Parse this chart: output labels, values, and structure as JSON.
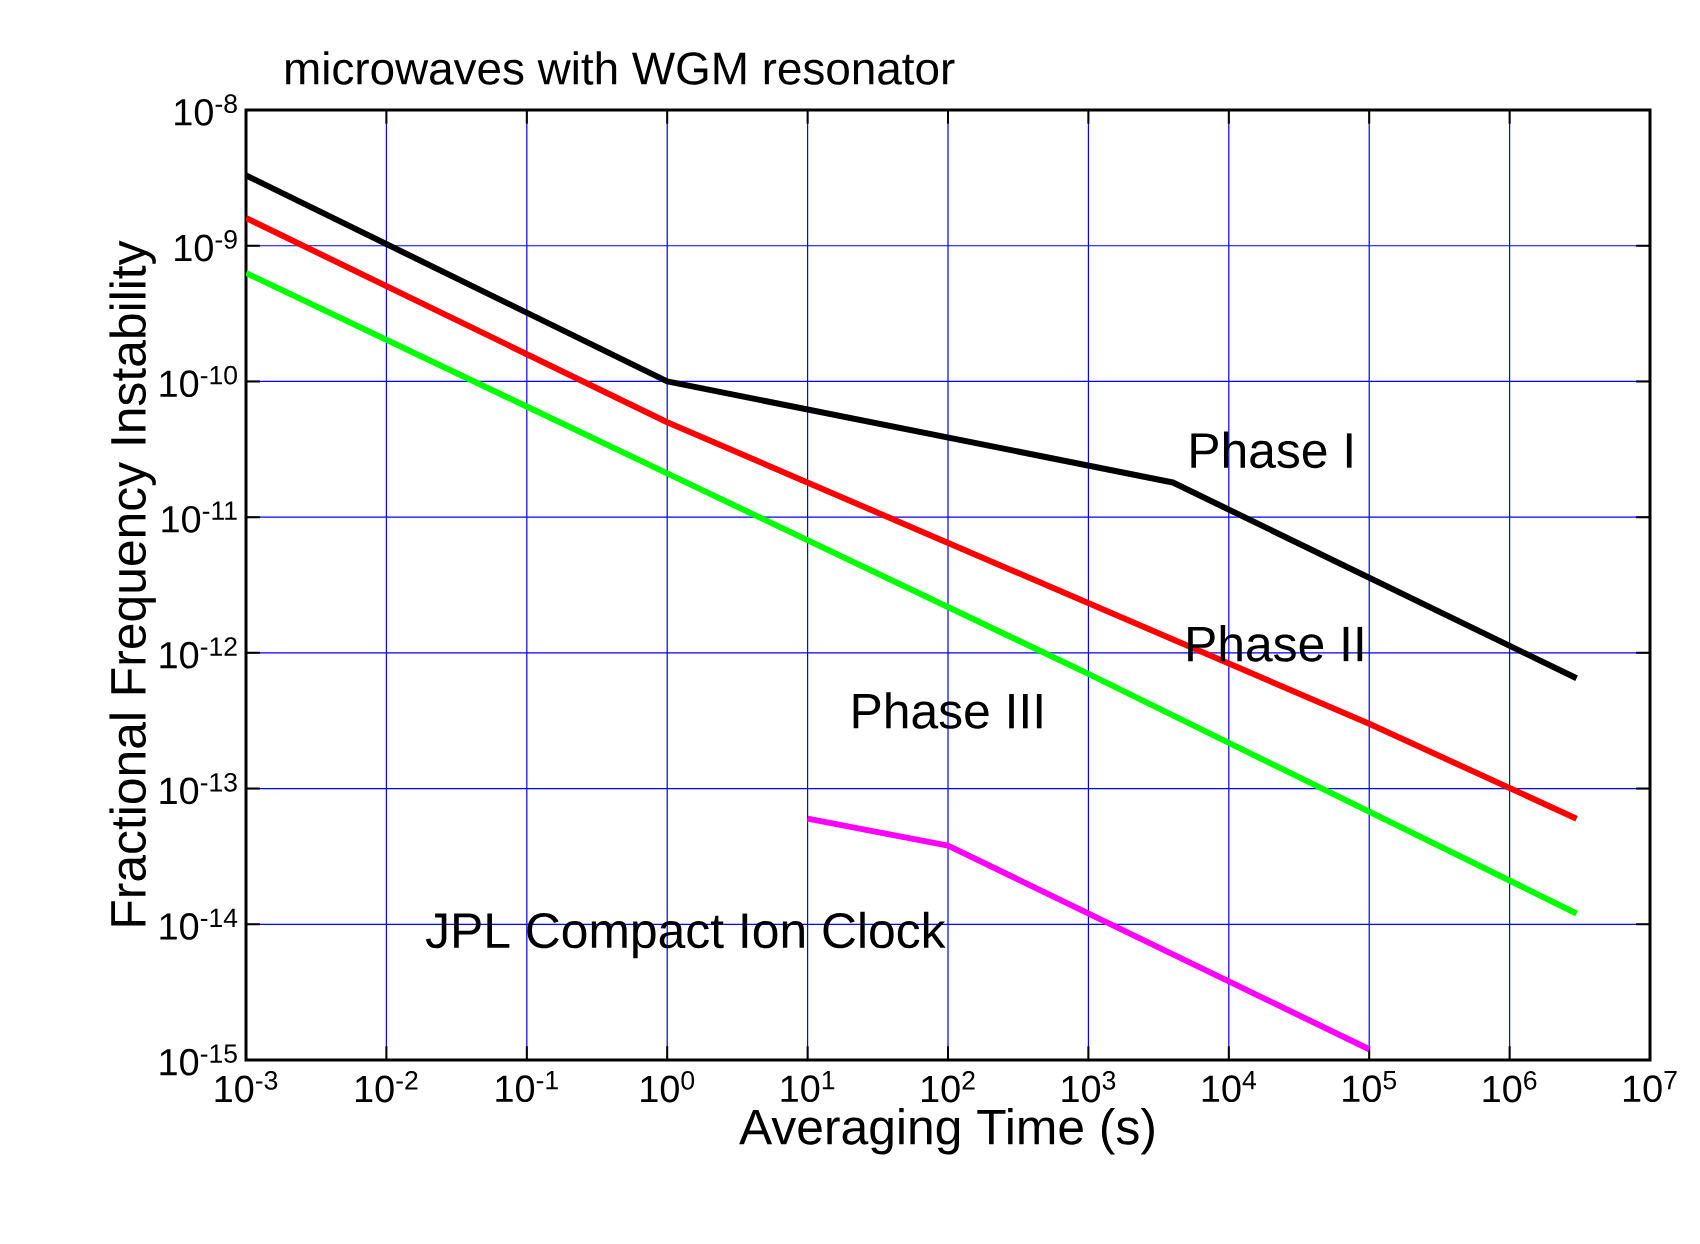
{
  "chart_data": {
    "type": "line",
    "title": "microwaves with WGM resonator",
    "xlabel": "Averaging Time (s)",
    "ylabel": "Fractional Frequency Instability",
    "log": "xy",
    "grid": true,
    "line_style": "solid",
    "marker": "none",
    "xlim": [
      0.001,
      10000000
    ],
    "ylim": [
      1e-15,
      1e-08
    ],
    "xticks": [
      {
        "value": 0.001,
        "label": "10$^{-3}$"
      },
      {
        "value": 0.01,
        "label": "10$^{-2}$"
      },
      {
        "value": 0.1,
        "label": "10$^{-1}$"
      },
      {
        "value": 1,
        "label": "10$^{0}$"
      },
      {
        "value": 10,
        "label": "10$^{1}$"
      },
      {
        "value": 100,
        "label": "10$^{2}$"
      },
      {
        "value": 1000,
        "label": "10$^{3}$"
      },
      {
        "value": 10000,
        "label": "10$^{4}$"
      },
      {
        "value": 100000,
        "label": "10$^{5}$"
      },
      {
        "value": 1000000,
        "label": "10$^{6}$"
      },
      {
        "value": 10000000,
        "label": "10$^{7}$"
      }
    ],
    "yticks": [
      {
        "value": 1e-15,
        "label": "10$^{-15}$"
      },
      {
        "value": 1e-14,
        "label": "10$^{-14}$"
      },
      {
        "value": 1e-13,
        "label": "10$^{-13}$"
      },
      {
        "value": 1e-12,
        "label": "10$^{-12}$"
      },
      {
        "value": 1e-11,
        "label": "10$^{-11}$"
      },
      {
        "value": 1e-10,
        "label": "10$^{-10}$"
      },
      {
        "value": 1e-09,
        "label": "10$^{-9}$"
      },
      {
        "value": 1e-08,
        "label": "10$^{-8}$"
      }
    ],
    "series": [
      {
        "name": "Phase I",
        "color": "#000000",
        "x": [
          0.001,
          1,
          4000,
          3000000
        ],
        "values": [
          3.3e-09,
          1e-10,
          1.8e-11,
          6.5e-13
        ]
      },
      {
        "name": "Phase II",
        "color": "#ff0000",
        "x": [
          0.001,
          1,
          100000,
          3000000
        ],
        "values": [
          1.6e-09,
          5e-11,
          3e-13,
          6e-14
        ]
      },
      {
        "name": "Phase III",
        "color": "#00ff00",
        "x": [
          0.001,
          1,
          1000,
          3000000
        ],
        "values": [
          6.3e-10,
          2.1e-11,
          7e-13,
          1.2e-14
        ]
      },
      {
        "name": "JPL Compact Ion Clock",
        "color": "#ff00ff",
        "x": [
          10,
          100,
          100000
        ],
        "values": [
          6e-14,
          3.8e-14,
          1.2e-15
        ]
      }
    ]
  }
}
